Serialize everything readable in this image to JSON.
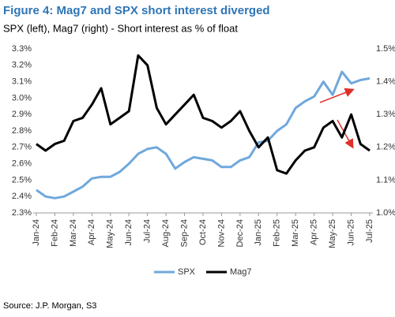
{
  "chart_data": {
    "type": "line",
    "title": "Figure 4: Mag7 and SPX short interest diverged",
    "subtitle": "SPX (left), Mag7 (right) - Short interest as % of float",
    "source": "Source: J.P. Morgan, S3",
    "categories": [
      "Jan-24",
      null,
      "Feb-24",
      null,
      "Mar-24",
      null,
      "Apr-24",
      null,
      "May-24",
      null,
      "Jun-24",
      null,
      "Jul-24",
      null,
      "Aug-24",
      null,
      "Sep-24",
      null,
      "Oct-24",
      null,
      "Nov-24",
      null,
      "Dec-24",
      null,
      "Jan-25",
      null,
      "Feb-25",
      null,
      "Mar-25",
      null,
      "Apr-25",
      null,
      "May-25",
      null,
      "Jun-25",
      null,
      "Jul-25"
    ],
    "series": [
      {
        "name": "SPX",
        "color": "#6fa8dc",
        "axis": "y",
        "values": [
          2.44,
          2.4,
          2.39,
          2.4,
          2.43,
          2.46,
          2.51,
          2.52,
          2.52,
          2.55,
          2.6,
          2.66,
          2.69,
          2.7,
          2.66,
          2.57,
          2.61,
          2.64,
          2.63,
          2.62,
          2.58,
          2.58,
          2.62,
          2.64,
          2.73,
          2.74,
          2.8,
          2.84,
          2.94,
          2.98,
          3.01,
          3.1,
          3.02,
          3.16,
          3.09,
          3.11,
          3.12
        ]
      },
      {
        "name": "Mag7",
        "color": "#000000",
        "axis": "y2",
        "values": [
          1.21,
          1.19,
          1.21,
          1.22,
          1.28,
          1.29,
          1.33,
          1.38,
          1.27,
          1.29,
          1.31,
          1.48,
          1.45,
          1.32,
          1.27,
          1.3,
          1.33,
          1.36,
          1.29,
          1.28,
          1.26,
          1.28,
          1.31,
          1.25,
          1.2,
          1.23,
          1.13,
          1.12,
          1.16,
          1.19,
          1.2,
          1.26,
          1.28,
          1.23,
          1.3,
          1.21,
          1.19
        ]
      }
    ],
    "ylim": [
      2.3,
      3.3
    ],
    "yticks": [
      {
        "value": 2.3,
        "label": "2.3%"
      },
      {
        "value": 2.4,
        "label": "2.4%"
      },
      {
        "value": 2.5,
        "label": "2.5%"
      },
      {
        "value": 2.6,
        "label": "2.6%"
      },
      {
        "value": 2.7,
        "label": "2.7%"
      },
      {
        "value": 2.8,
        "label": "2.8%"
      },
      {
        "value": 2.9,
        "label": "2.9%"
      },
      {
        "value": 3.0,
        "label": "3.0%"
      },
      {
        "value": 3.1,
        "label": "3.1%"
      },
      {
        "value": 3.2,
        "label": "3.2%"
      },
      {
        "value": 3.3,
        "label": "3.3%"
      }
    ],
    "y2lim": [
      1.0,
      1.5
    ],
    "y2ticks": [
      {
        "value": 1.0,
        "label": "1.0%"
      },
      {
        "value": 1.1,
        "label": "1.1%"
      },
      {
        "value": 1.2,
        "label": "1.2%"
      },
      {
        "value": 1.3,
        "label": "1.3%"
      },
      {
        "value": 1.4,
        "label": "1.4%"
      },
      {
        "value": 1.5,
        "label": "1.5%"
      }
    ],
    "grid": false,
    "legend": "bottom"
  }
}
